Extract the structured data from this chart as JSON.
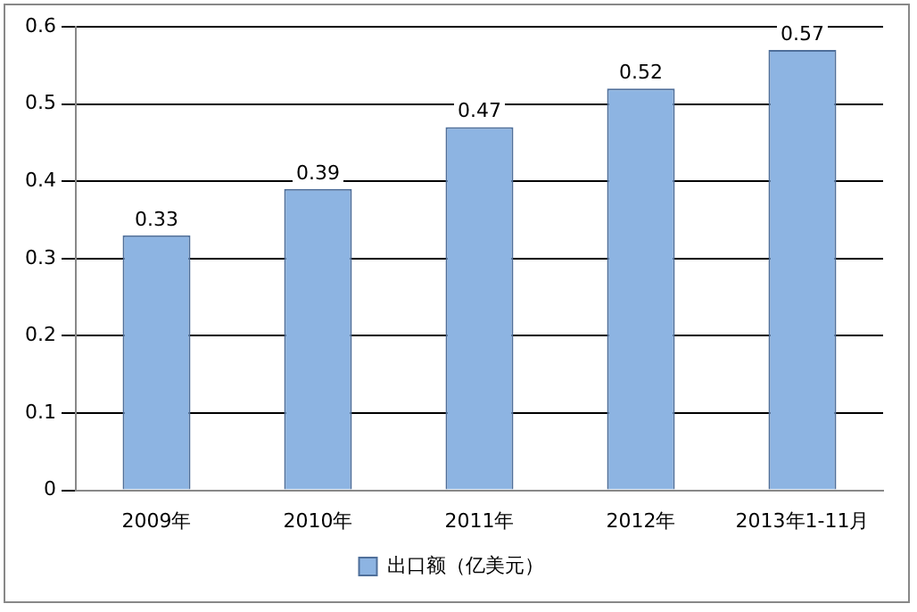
{
  "chart_data": {
    "type": "bar",
    "categories": [
      "2009年",
      "2010年",
      "2011年",
      "2012年",
      "2013年1-11月"
    ],
    "series": [
      {
        "name": "出口额（亿美元）",
        "color": "#8db4e2",
        "values": [
          0.33,
          0.39,
          0.47,
          0.52,
          0.57
        ]
      }
    ],
    "ylim": [
      0,
      0.6
    ],
    "yticks": [
      0,
      0.1,
      0.2,
      0.3,
      0.4,
      0.5,
      0.6
    ],
    "grid": "y",
    "legend": "bottom",
    "data_labels": true
  }
}
